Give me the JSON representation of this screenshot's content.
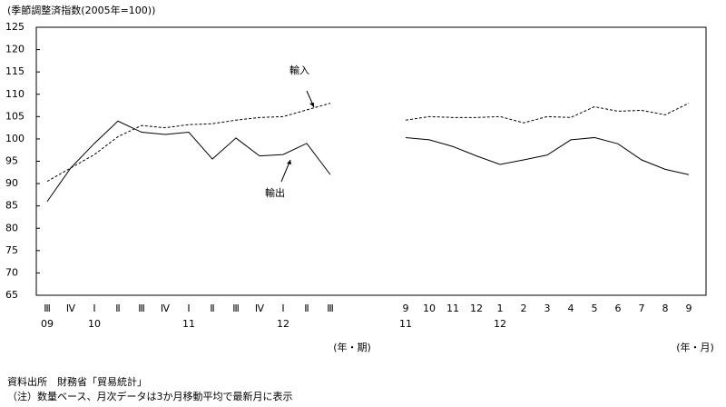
{
  "chart_data": [
    {
      "type": "line",
      "y_label": "(季節調整済指数(2005年=100))",
      "x_unit": "(年・期)",
      "categories": [
        "Ⅲ",
        "Ⅳ",
        "Ⅰ",
        "Ⅱ",
        "Ⅲ",
        "Ⅳ",
        "Ⅰ",
        "Ⅱ",
        "Ⅲ",
        "Ⅳ",
        "Ⅰ",
        "Ⅱ",
        "Ⅲ"
      ],
      "year_labels": [
        "09",
        null,
        "10",
        null,
        null,
        null,
        "11",
        null,
        null,
        null,
        "12",
        null,
        null
      ],
      "series": [
        {
          "name": "輸出",
          "color": "#000000",
          "dash": false,
          "values": [
            86,
            93.5,
            99,
            104,
            101.5,
            101,
            101.5,
            95.5,
            100.2,
            96.2,
            96.5,
            99,
            92
          ]
        },
        {
          "name": "輸入",
          "color": "#000000",
          "dash": true,
          "values": [
            90.5,
            93.5,
            96.5,
            100.5,
            103,
            102.5,
            103.2,
            103.4,
            104.2,
            104.8,
            105,
            106.5,
            108
          ]
        }
      ],
      "ylim": [
        65,
        125
      ],
      "yticks": [
        65,
        70,
        75,
        80,
        85,
        90,
        95,
        100,
        105,
        110,
        115,
        120,
        125
      ]
    },
    {
      "type": "line",
      "x_unit": "(年・月)",
      "categories": [
        "9",
        "10",
        "11",
        "12",
        "1",
        "2",
        "3",
        "4",
        "5",
        "6",
        "7",
        "8",
        "9"
      ],
      "year_labels": [
        "11",
        null,
        null,
        null,
        "12",
        null,
        null,
        null,
        null,
        null,
        null,
        null,
        null
      ],
      "series": [
        {
          "color": "#000000",
          "dash": false,
          "values": [
            100.3,
            99.8,
            98.3,
            96.2,
            94.3,
            95.3,
            96.4,
            99.8,
            100.3,
            98.9,
            95.3,
            93.2,
            92
          ]
        },
        {
          "color": "#000000",
          "dash": true,
          "values": [
            104.2,
            105,
            104.8,
            104.8,
            105,
            103.6,
            105,
            104.8,
            107.2,
            106.2,
            106.4,
            105.4,
            108
          ]
        }
      ],
      "ylim": [
        65,
        125
      ]
    }
  ],
  "source": "資料出所　財務省「貿易統計」",
  "note": "（注）数量ベース、月次データは3か月移動平均で最新月に表示"
}
